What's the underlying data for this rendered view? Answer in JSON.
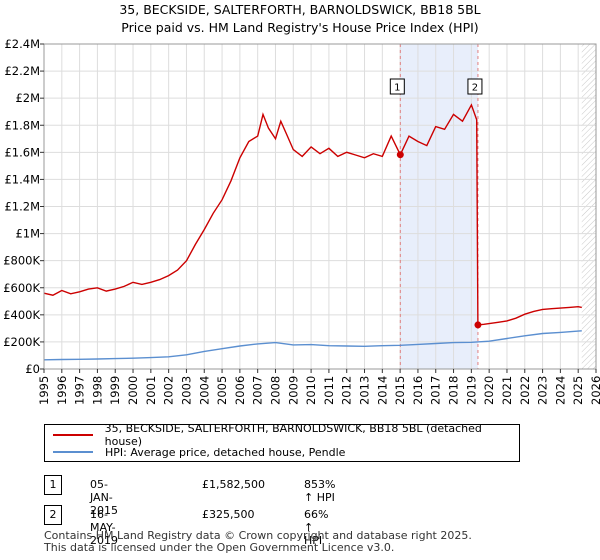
{
  "title_line1": "35, BECKSIDE, SALTERFORTH, BARNOLDSWICK, BB18 5BL",
  "title_line2": "Price paid vs. HM Land Registry's House Price Index (HPI)",
  "colors": {
    "property_line": "#cc0000",
    "hpi_line": "#5b8fd0",
    "highlight": "#e8eefb",
    "dashed": "#e08080"
  },
  "legend": {
    "property": "35, BECKSIDE, SALTERFORTH, BARNOLDSWICK, BB18 5BL (detached house)",
    "hpi": "HPI: Average price, detached house, Pendle"
  },
  "sales": [
    {
      "num": "1",
      "date": "05-JAN-2015",
      "price": "£1,582,500",
      "hpi_change": "853% ↑ HPI"
    },
    {
      "num": "2",
      "date": "16-MAY-2019",
      "price": "£325,500",
      "hpi_change": "66% ↑ HPI"
    }
  ],
  "footer": {
    "line1": "Contains HM Land Registry data © Crown copyright and database right 2025.",
    "line2": "This data is licensed under the Open Government Licence v3.0."
  },
  "chart_data": {
    "type": "line",
    "title": "35, BECKSIDE, SALTERFORTH, BARNOLDSWICK, BB18 5BL",
    "subtitle": "Price paid vs. HM Land Registry's House Price Index (HPI)",
    "xlim": [
      1995,
      2026
    ],
    "ylim": [
      0,
      2400000
    ],
    "x_ticks": [
      1995,
      1996,
      1997,
      1998,
      1999,
      2000,
      2001,
      2002,
      2003,
      2004,
      2005,
      2006,
      2007,
      2008,
      2009,
      2010,
      2011,
      2012,
      2013,
      2014,
      2015,
      2016,
      2017,
      2018,
      2019,
      2020,
      2021,
      2022,
      2023,
      2024,
      2025,
      2026
    ],
    "y_ticks": [
      {
        "value": 0,
        "label": "£0"
      },
      {
        "value": 200000,
        "label": "£200K"
      },
      {
        "value": 400000,
        "label": "£400K"
      },
      {
        "value": 600000,
        "label": "£600K"
      },
      {
        "value": 800000,
        "label": "£800K"
      },
      {
        "value": 1000000,
        "label": "£1M"
      },
      {
        "value": 1200000,
        "label": "£1.2M"
      },
      {
        "value": 1400000,
        "label": "£1.4M"
      },
      {
        "value": 1600000,
        "label": "£1.6M"
      },
      {
        "value": 1800000,
        "label": "£1.8M"
      },
      {
        "value": 2000000,
        "label": "£2M"
      },
      {
        "value": 2200000,
        "label": "£2.2M"
      },
      {
        "value": 2400000,
        "label": "£2.4M"
      }
    ],
    "highlight_span": [
      2015.01,
      2019.37
    ],
    "future_from": 2025.2,
    "series": [
      {
        "name": "35, BECKSIDE, SALTERFORTH, BARNOLDSWICK, BB18 5BL (detached house)",
        "points": [
          [
            1995.0,
            560000
          ],
          [
            1995.5,
            545000
          ],
          [
            1996.0,
            580000
          ],
          [
            1996.5,
            555000
          ],
          [
            1997.0,
            570000
          ],
          [
            1997.5,
            590000
          ],
          [
            1998.0,
            600000
          ],
          [
            1998.5,
            575000
          ],
          [
            1999.0,
            590000
          ],
          [
            1999.5,
            610000
          ],
          [
            2000.0,
            640000
          ],
          [
            2000.5,
            625000
          ],
          [
            2001.0,
            640000
          ],
          [
            2001.5,
            660000
          ],
          [
            2002.0,
            690000
          ],
          [
            2002.5,
            730000
          ],
          [
            2003.0,
            800000
          ],
          [
            2003.5,
            920000
          ],
          [
            2004.0,
            1030000
          ],
          [
            2004.5,
            1150000
          ],
          [
            2005.0,
            1250000
          ],
          [
            2005.5,
            1390000
          ],
          [
            2006.0,
            1560000
          ],
          [
            2006.5,
            1680000
          ],
          [
            2007.0,
            1720000
          ],
          [
            2007.3,
            1880000
          ],
          [
            2007.6,
            1780000
          ],
          [
            2008.0,
            1700000
          ],
          [
            2008.3,
            1830000
          ],
          [
            2008.6,
            1740000
          ],
          [
            2009.0,
            1620000
          ],
          [
            2009.5,
            1570000
          ],
          [
            2010.0,
            1640000
          ],
          [
            2010.5,
            1590000
          ],
          [
            2011.0,
            1630000
          ],
          [
            2011.5,
            1570000
          ],
          [
            2012.0,
            1600000
          ],
          [
            2012.5,
            1580000
          ],
          [
            2013.0,
            1560000
          ],
          [
            2013.5,
            1590000
          ],
          [
            2014.0,
            1570000
          ],
          [
            2014.5,
            1720000
          ],
          [
            2015.01,
            1582500
          ],
          [
            2015.5,
            1720000
          ],
          [
            2016.0,
            1680000
          ],
          [
            2016.5,
            1650000
          ],
          [
            2017.0,
            1790000
          ],
          [
            2017.5,
            1770000
          ],
          [
            2018.0,
            1880000
          ],
          [
            2018.5,
            1830000
          ],
          [
            2019.0,
            1950000
          ],
          [
            2019.3,
            1840000
          ],
          [
            2019.37,
            325500
          ],
          [
            2019.7,
            330000
          ],
          [
            2020.0,
            335000
          ],
          [
            2020.5,
            345000
          ],
          [
            2021.0,
            355000
          ],
          [
            2021.5,
            375000
          ],
          [
            2022.0,
            405000
          ],
          [
            2022.5,
            425000
          ],
          [
            2023.0,
            440000
          ],
          [
            2023.5,
            445000
          ],
          [
            2024.0,
            450000
          ],
          [
            2024.5,
            455000
          ],
          [
            2025.0,
            460000
          ],
          [
            2025.2,
            455000
          ]
        ]
      },
      {
        "name": "HPI: Average price, detached house, Pendle",
        "points": [
          [
            1995.0,
            68000
          ],
          [
            1996.0,
            70000
          ],
          [
            1997.0,
            72000
          ],
          [
            1998.0,
            74000
          ],
          [
            1999.0,
            77000
          ],
          [
            2000.0,
            80000
          ],
          [
            2001.0,
            84000
          ],
          [
            2002.0,
            90000
          ],
          [
            2003.0,
            105000
          ],
          [
            2004.0,
            130000
          ],
          [
            2005.0,
            150000
          ],
          [
            2006.0,
            170000
          ],
          [
            2007.0,
            185000
          ],
          [
            2008.0,
            195000
          ],
          [
            2009.0,
            178000
          ],
          [
            2010.0,
            180000
          ],
          [
            2011.0,
            172000
          ],
          [
            2012.0,
            170000
          ],
          [
            2013.0,
            168000
          ],
          [
            2014.0,
            172000
          ],
          [
            2015.0,
            175000
          ],
          [
            2016.0,
            182000
          ],
          [
            2017.0,
            188000
          ],
          [
            2018.0,
            195000
          ],
          [
            2019.0,
            197000
          ],
          [
            2020.0,
            205000
          ],
          [
            2021.0,
            225000
          ],
          [
            2022.0,
            245000
          ],
          [
            2023.0,
            262000
          ],
          [
            2024.0,
            270000
          ],
          [
            2025.0,
            280000
          ],
          [
            2025.2,
            282000
          ]
        ]
      }
    ],
    "markers": [
      {
        "label": "1",
        "x": 2015.01,
        "y": 1582500
      },
      {
        "label": "2",
        "x": 2019.37,
        "y": 325500
      }
    ]
  }
}
